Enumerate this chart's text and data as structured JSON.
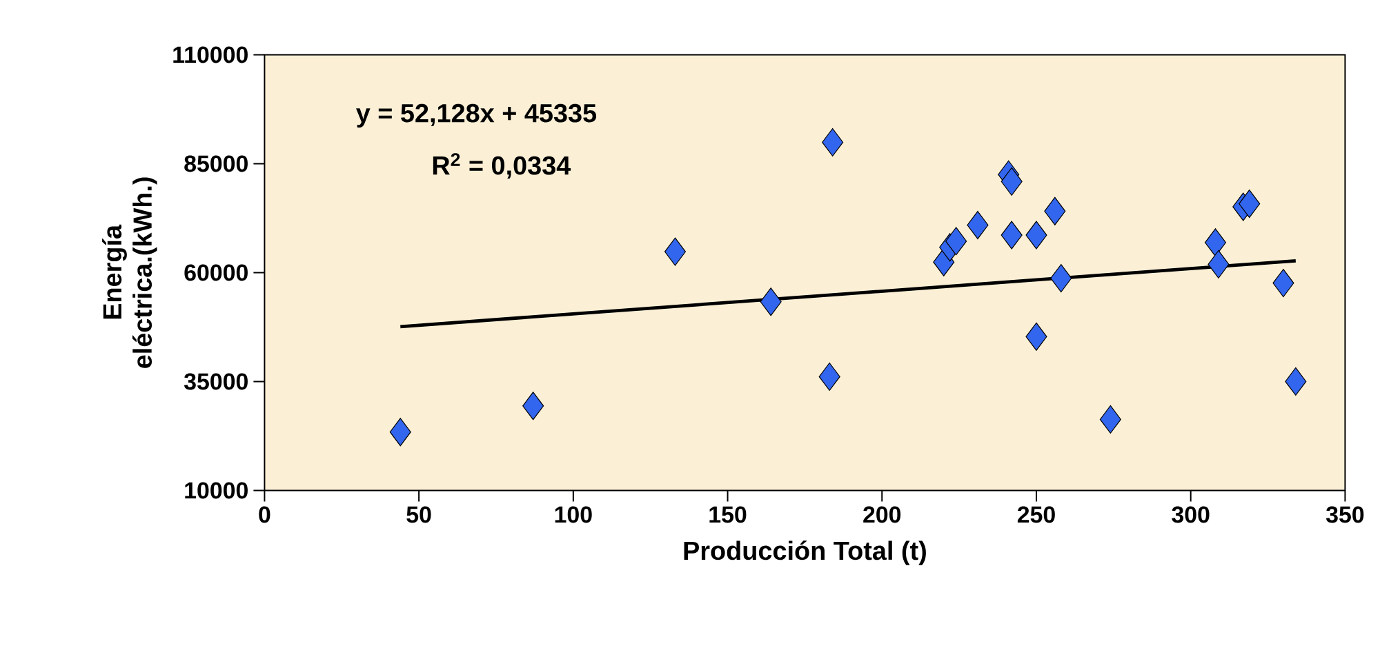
{
  "chart_data": {
    "type": "scatter",
    "xlabel": "Producción Total (t)",
    "ylabel": "Energía eléctrica.(kWh.)",
    "annotations": [
      "y = 52,128x + 45335",
      "R$^{2}$ = 0,0334"
    ],
    "xlim": [
      0,
      350
    ],
    "xticks": [
      0,
      50,
      100,
      150,
      200,
      250,
      300,
      350
    ],
    "ylim": [
      10000,
      110000
    ],
    "yticks": [
      10000,
      35000,
      60000,
      85000,
      110000
    ],
    "grid": false,
    "marker": "diamond",
    "series": [
      {
        "color": "#3366ee",
        "x": [
          44,
          87,
          133,
          164,
          184,
          183,
          220,
          222,
          224,
          231,
          241,
          242,
          242,
          250,
          256,
          258,
          250,
          274,
          308,
          309,
          317,
          319,
          330,
          334
        ],
        "values": [
          23400,
          29400,
          64800,
          53300,
          89900,
          36100,
          62400,
          65800,
          67200,
          70900,
          82500,
          80900,
          68600,
          68600,
          74100,
          58700,
          45300,
          26300,
          66900,
          61900,
          75100,
          75800,
          57600,
          35000
        ]
      },
      {
        "type": "line",
        "color": "#000000",
        "marker": "none",
        "x": [
          44,
          334
        ],
        "values": [
          47600,
          62700
        ]
      }
    ]
  }
}
